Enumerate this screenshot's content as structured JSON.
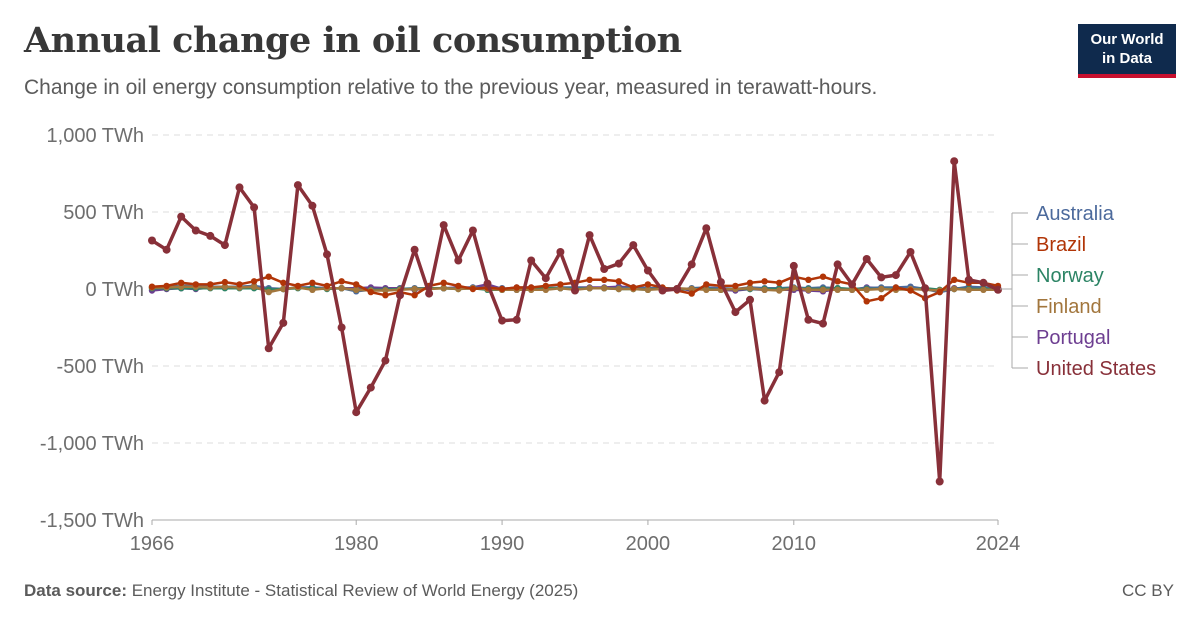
{
  "header": {
    "title": "Annual change in oil consumption",
    "subtitle": "Change in oil energy consumption relative to the previous year, measured in terawatt-hours."
  },
  "logo": {
    "line1": "Our World",
    "line2": "in Data"
  },
  "footer": {
    "source_label": "Data source:",
    "source_text": " Energy Institute - Statistical Review of World Energy (2025)",
    "license": "CC BY"
  },
  "chart_data": {
    "type": "line",
    "x_ticks": [
      "1966",
      "1980",
      "1990",
      "2000",
      "2010",
      "2024"
    ],
    "y_ticks": [
      "1,000 TWh",
      "500 TWh",
      "0 TWh",
      "-500 TWh",
      "-1,000 TWh",
      "-1,500 TWh"
    ],
    "y_tick_values": [
      1000,
      500,
      0,
      -500,
      -1000,
      -1500
    ],
    "xlim": [
      1966,
      2024
    ],
    "ylim": [
      -1500,
      1000
    ],
    "grid": true,
    "legend_placement": "right",
    "x": [
      1966,
      1967,
      1968,
      1969,
      1970,
      1971,
      1972,
      1973,
      1974,
      1975,
      1976,
      1977,
      1978,
      1979,
      1980,
      1981,
      1982,
      1983,
      1984,
      1985,
      1986,
      1987,
      1988,
      1989,
      1990,
      1991,
      1992,
      1993,
      1994,
      1995,
      1996,
      1997,
      1998,
      1999,
      2000,
      2001,
      2002,
      2003,
      2004,
      2005,
      2006,
      2007,
      2008,
      2009,
      2010,
      2011,
      2012,
      2013,
      2014,
      2015,
      2016,
      2017,
      2018,
      2019,
      2020,
      2021,
      2022,
      2023,
      2024
    ],
    "series": [
      {
        "name": "Australia",
        "color": "#4c6a9c",
        "values": [
          10,
          15,
          20,
          20,
          15,
          15,
          15,
          20,
          5,
          0,
          10,
          10,
          5,
          5,
          -15,
          -5,
          -5,
          0,
          5,
          5,
          5,
          5,
          10,
          5,
          5,
          -5,
          5,
          5,
          10,
          10,
          5,
          5,
          5,
          10,
          5,
          5,
          -5,
          5,
          10,
          5,
          0,
          10,
          5,
          5,
          10,
          5,
          10,
          5,
          0,
          5,
          10,
          10,
          15,
          0,
          -20,
          0,
          15,
          10,
          0
        ]
      },
      {
        "name": "Brazil",
        "color": "#b13507",
        "values": [
          15,
          20,
          40,
          30,
          30,
          45,
          30,
          50,
          80,
          40,
          20,
          40,
          20,
          50,
          30,
          -20,
          -40,
          -20,
          -40,
          20,
          40,
          20,
          0,
          10,
          0,
          10,
          10,
          20,
          30,
          40,
          60,
          60,
          50,
          10,
          30,
          10,
          -10,
          -30,
          30,
          20,
          20,
          40,
          50,
          40,
          80,
          60,
          80,
          50,
          30,
          -80,
          -60,
          10,
          -10,
          -60,
          -20,
          60,
          40,
          40,
          20
        ]
      },
      {
        "name": "Norway",
        "color": "#2c8465",
        "values": [
          5,
          5,
          5,
          5,
          5,
          5,
          5,
          5,
          -5,
          0,
          5,
          5,
          0,
          5,
          -5,
          -5,
          -5,
          0,
          0,
          5,
          5,
          0,
          5,
          -5,
          -5,
          0,
          0,
          5,
          5,
          0,
          5,
          5,
          0,
          0,
          -5,
          5,
          0,
          0,
          0,
          -5,
          0,
          0,
          0,
          0,
          5,
          0,
          0,
          5,
          0,
          0,
          0,
          0,
          -5,
          5,
          -5,
          0,
          0,
          0,
          0
        ]
      },
      {
        "name": "Finland",
        "color": "#a2763d",
        "values": [
          10,
          10,
          15,
          15,
          10,
          15,
          10,
          15,
          -20,
          0,
          10,
          -5,
          5,
          5,
          -5,
          -10,
          -10,
          -5,
          0,
          0,
          5,
          0,
          5,
          0,
          -5,
          -5,
          -5,
          -5,
          5,
          -5,
          5,
          5,
          0,
          0,
          -5,
          0,
          5,
          0,
          -5,
          -5,
          0,
          5,
          -5,
          -10,
          5,
          -5,
          -5,
          -5,
          -5,
          -5,
          0,
          -5,
          0,
          -5,
          -10,
          0,
          -5,
          -5,
          -5
        ]
      },
      {
        "name": "Portugal",
        "color": "#6d3e91",
        "values": [
          -10,
          0,
          5,
          0,
          10,
          10,
          10,
          10,
          -5,
          0,
          10,
          10,
          5,
          5,
          5,
          10,
          5,
          5,
          -5,
          5,
          5,
          10,
          10,
          30,
          0,
          10,
          10,
          5,
          5,
          10,
          10,
          10,
          15,
          10,
          5,
          5,
          5,
          -10,
          5,
          -5,
          -10,
          0,
          -5,
          -5,
          -5,
          -10,
          -15,
          0,
          -5,
          10,
          5,
          5,
          0,
          5,
          -15,
          5,
          5,
          5,
          5
        ]
      },
      {
        "name": "United States",
        "color": "#883039",
        "values": [
          315,
          255,
          470,
          380,
          345,
          285,
          660,
          530,
          -385,
          -220,
          675,
          540,
          225,
          -250,
          -800,
          -640,
          -465,
          -40,
          255,
          -30,
          415,
          185,
          380,
          35,
          -205,
          -200,
          185,
          70,
          240,
          -10,
          350,
          130,
          165,
          285,
          120,
          -10,
          0,
          160,
          395,
          45,
          -150,
          -70,
          -725,
          -540,
          150,
          -200,
          -225,
          160,
          30,
          195,
          75,
          90,
          240,
          5,
          -1250,
          830,
          60,
          40,
          -5
        ]
      }
    ]
  }
}
